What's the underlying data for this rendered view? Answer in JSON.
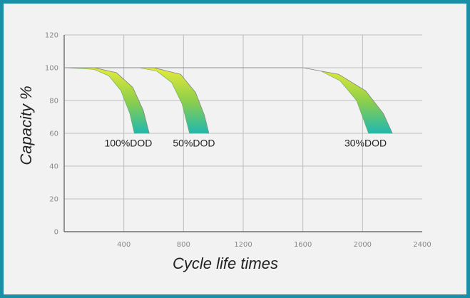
{
  "colors": {
    "frame": "#1a8fa6",
    "background": "#f2f2f2",
    "grid": "#bdbdbd",
    "band_top": "#e6ea3a",
    "band_mid": "#8fcf4a",
    "band_bottom": "#1fb8b0"
  },
  "chart_data": {
    "type": "area",
    "xlabel": "Cycle life times",
    "ylabel": "Capacity %",
    "xlim": [
      0,
      2400
    ],
    "ylim": [
      0,
      120
    ],
    "xticks": [
      400,
      800,
      1200,
      1600,
      2000,
      2400
    ],
    "yticks": [
      0,
      20,
      40,
      60,
      80,
      100,
      120
    ],
    "grid": true,
    "series": [
      {
        "name": "100%DOD",
        "upper": [
          [
            0,
            100
          ],
          [
            200,
            99
          ],
          [
            300,
            95
          ],
          [
            380,
            86
          ],
          [
            440,
            72
          ],
          [
            470,
            60
          ]
        ],
        "lower": [
          [
            0,
            100
          ],
          [
            200,
            100
          ],
          [
            350,
            97
          ],
          [
            460,
            88
          ],
          [
            530,
            74
          ],
          [
            570,
            60
          ]
        ]
      },
      {
        "name": "50%DOD",
        "upper": [
          [
            0,
            100
          ],
          [
            500,
            100
          ],
          [
            620,
            98
          ],
          [
            720,
            91
          ],
          [
            790,
            78
          ],
          [
            840,
            60
          ]
        ],
        "lower": [
          [
            0,
            100
          ],
          [
            600,
            100
          ],
          [
            780,
            96
          ],
          [
            880,
            85
          ],
          [
            940,
            71
          ],
          [
            970,
            60
          ]
        ]
      },
      {
        "name": "30%DOD",
        "upper": [
          [
            0,
            100
          ],
          [
            1600,
            100
          ],
          [
            1720,
            98
          ],
          [
            1850,
            92
          ],
          [
            1960,
            80
          ],
          [
            2040,
            60
          ]
        ],
        "lower": [
          [
            0,
            100
          ],
          [
            1600,
            100
          ],
          [
            1840,
            96
          ],
          [
            2020,
            86
          ],
          [
            2140,
            72
          ],
          [
            2200,
            60
          ]
        ]
      }
    ],
    "annotations": [
      {
        "text": "100%DOD",
        "x": 430,
        "y": 52
      },
      {
        "text": "50%DOD",
        "x": 870,
        "y": 52
      },
      {
        "text": "30%DOD",
        "x": 2020,
        "y": 52
      }
    ]
  }
}
